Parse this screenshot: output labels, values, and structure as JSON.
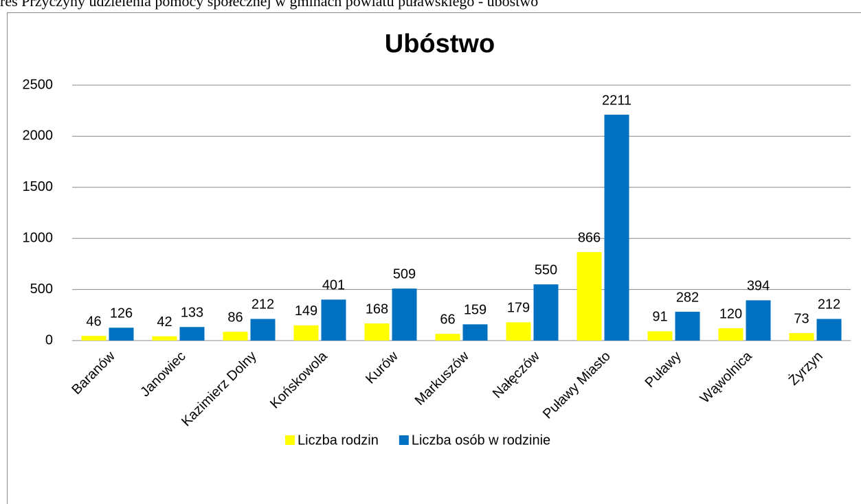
{
  "caption": "res Przyczyny udzielenia pomocy społecznej w gminach powiatu puławskiego - ubóstwo",
  "chart_data": {
    "type": "bar",
    "title": "Ubóstwo",
    "categories": [
      "Baranów",
      "Janowiec",
      "Kazimierz Dolny",
      "Końskowola",
      "Kurów",
      "Markuszów",
      "Nałęczów",
      "Puławy Miasto",
      "Puławy",
      "Wąwolnica",
      "Żyrzyn"
    ],
    "series": [
      {
        "name": "Liczba rodzin",
        "color": "#ffff00",
        "values": [
          46,
          42,
          86,
          149,
          168,
          66,
          179,
          866,
          91,
          120,
          73
        ]
      },
      {
        "name": "Liczba osób w rodzinie",
        "color": "#0070c0",
        "values": [
          126,
          133,
          212,
          401,
          509,
          159,
          550,
          2211,
          282,
          394,
          212
        ]
      }
    ],
    "ylim": [
      0,
      2500
    ],
    "yticks": [
      0,
      500,
      1000,
      1500,
      2000,
      2500
    ],
    "grid": true,
    "legend": "bottom"
  }
}
